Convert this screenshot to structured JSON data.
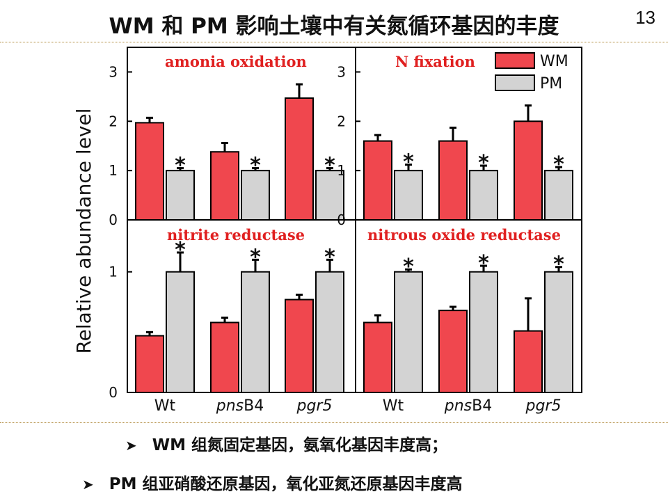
{
  "header": {
    "title": "WM 和 PM 影响土壤中有关氮循环基因的丰度",
    "page_number": "13"
  },
  "bullets": [
    "WM 组氮固定基因，氨氧化基因丰度高；",
    "PM 组亚硝酸还原基因，氧化亚氮还原基因丰度高"
  ],
  "colors": {
    "WM": "#f0474e",
    "PM": "#d3d3d3",
    "title_red": "#e02020"
  },
  "chart_data": {
    "type": "bar",
    "ylabel": "Relative abundance level",
    "categories": [
      "Wt",
      "pnsB4",
      "pgr5"
    ],
    "category_parts": [
      {
        "italic": "",
        "normal": "Wt"
      },
      {
        "italic": "pns",
        "normal": "B4"
      },
      {
        "italic": "pgr5",
        "normal": ""
      }
    ],
    "legend": {
      "placement": "top-right",
      "entries": [
        "WM",
        "PM"
      ]
    },
    "panels": [
      {
        "title": "amonia oxidation",
        "ylim": [
          0,
          3.5
        ],
        "yticks": [
          0,
          1,
          2,
          3
        ],
        "series": [
          {
            "name": "WM",
            "values": [
              1.97,
              1.38,
              2.47
            ],
            "errors": [
              0.1,
              0.18,
              0.28
            ]
          },
          {
            "name": "PM",
            "values": [
              1.0,
              1.0,
              1.0
            ],
            "errors": [
              0.05,
              0.05,
              0.05
            ]
          }
        ],
        "significant": [
          true,
          true,
          true
        ]
      },
      {
        "title": "N fixation",
        "ylim": [
          0,
          3.5
        ],
        "yticks": [
          0,
          1,
          2,
          3
        ],
        "series": [
          {
            "name": "WM",
            "values": [
              1.6,
              1.6,
              2.0
            ],
            "errors": [
              0.12,
              0.27,
              0.32
            ]
          },
          {
            "name": "PM",
            "values": [
              1.0,
              1.0,
              1.0
            ],
            "errors": [
              0.12,
              0.1,
              0.07
            ]
          }
        ],
        "significant": [
          true,
          true,
          true
        ]
      },
      {
        "title": "nitrite reductase",
        "ylim": [
          0,
          1.35
        ],
        "yticks": [
          0,
          1
        ],
        "series": [
          {
            "name": "WM",
            "values": [
              0.47,
              0.58,
              0.77
            ],
            "errors": [
              0.03,
              0.04,
              0.04
            ]
          },
          {
            "name": "PM",
            "values": [
              1.0,
              1.0,
              1.0
            ],
            "errors": [
              0.16,
              0.1,
              0.1
            ]
          }
        ],
        "significant": [
          true,
          true,
          true
        ]
      },
      {
        "title": "nitrous oxide reductase",
        "ylim": [
          0,
          1.35
        ],
        "yticks": [],
        "series": [
          {
            "name": "WM",
            "values": [
              0.58,
              0.68,
              0.51
            ],
            "errors": [
              0.06,
              0.03,
              0.27
            ]
          },
          {
            "name": "PM",
            "values": [
              1.0,
              1.0,
              1.0
            ],
            "errors": [
              0.02,
              0.05,
              0.04
            ]
          }
        ],
        "significant": [
          true,
          true,
          true
        ]
      }
    ]
  }
}
